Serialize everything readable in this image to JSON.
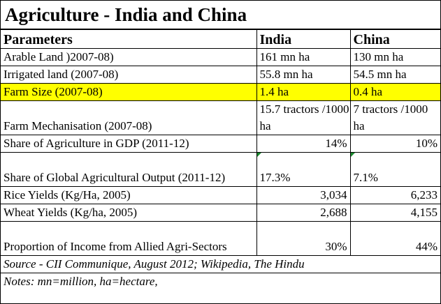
{
  "title": "Agriculture - India and China",
  "headers": [
    "Parameters",
    "India",
    "China"
  ],
  "rows": [
    {
      "param": "Arable Land )2007-08)",
      "india": "161 mn ha",
      "china": "130 mn ha"
    },
    {
      "param": "Irrigated land (2007-08)",
      "india": "55.8 mn ha",
      "china": "54.5 mn ha"
    },
    {
      "param": "Farm Size (2007-08)",
      "india": "1.4 ha",
      "china": "0.4 ha"
    },
    {
      "param": "Farm Mechanisation (2007-08)",
      "india": "15.7 tractors /1000 ha",
      "china": "7 tractors /1000 ha"
    },
    {
      "param": "Share of Agriculture in GDP (2011-12)",
      "india": "14%",
      "china": "10%"
    },
    {
      "param": "Share of Global Agricultural Output (2011-12)",
      "india": "17.3%",
      "china": "7.1%"
    },
    {
      "param": "Rice Yields (Kg/Ha, 2005)",
      "india": "3,034",
      "china": "6,233"
    },
    {
      "param": "Wheat Yields (Kg/ha, 2005)",
      "india": "2,688",
      "china": "4,155"
    },
    {
      "param": "Proportion of Income from Allied Agri-Sectors",
      "india": "30%",
      "china": "44%"
    }
  ],
  "source": "Source - CII Communique, August 2012; Wikipedia, The Hindu",
  "notes": "Notes: mn=million, ha=hectare,",
  "colors": {
    "highlight": "#ffff00",
    "comment_marker": "#1a8a2e"
  }
}
